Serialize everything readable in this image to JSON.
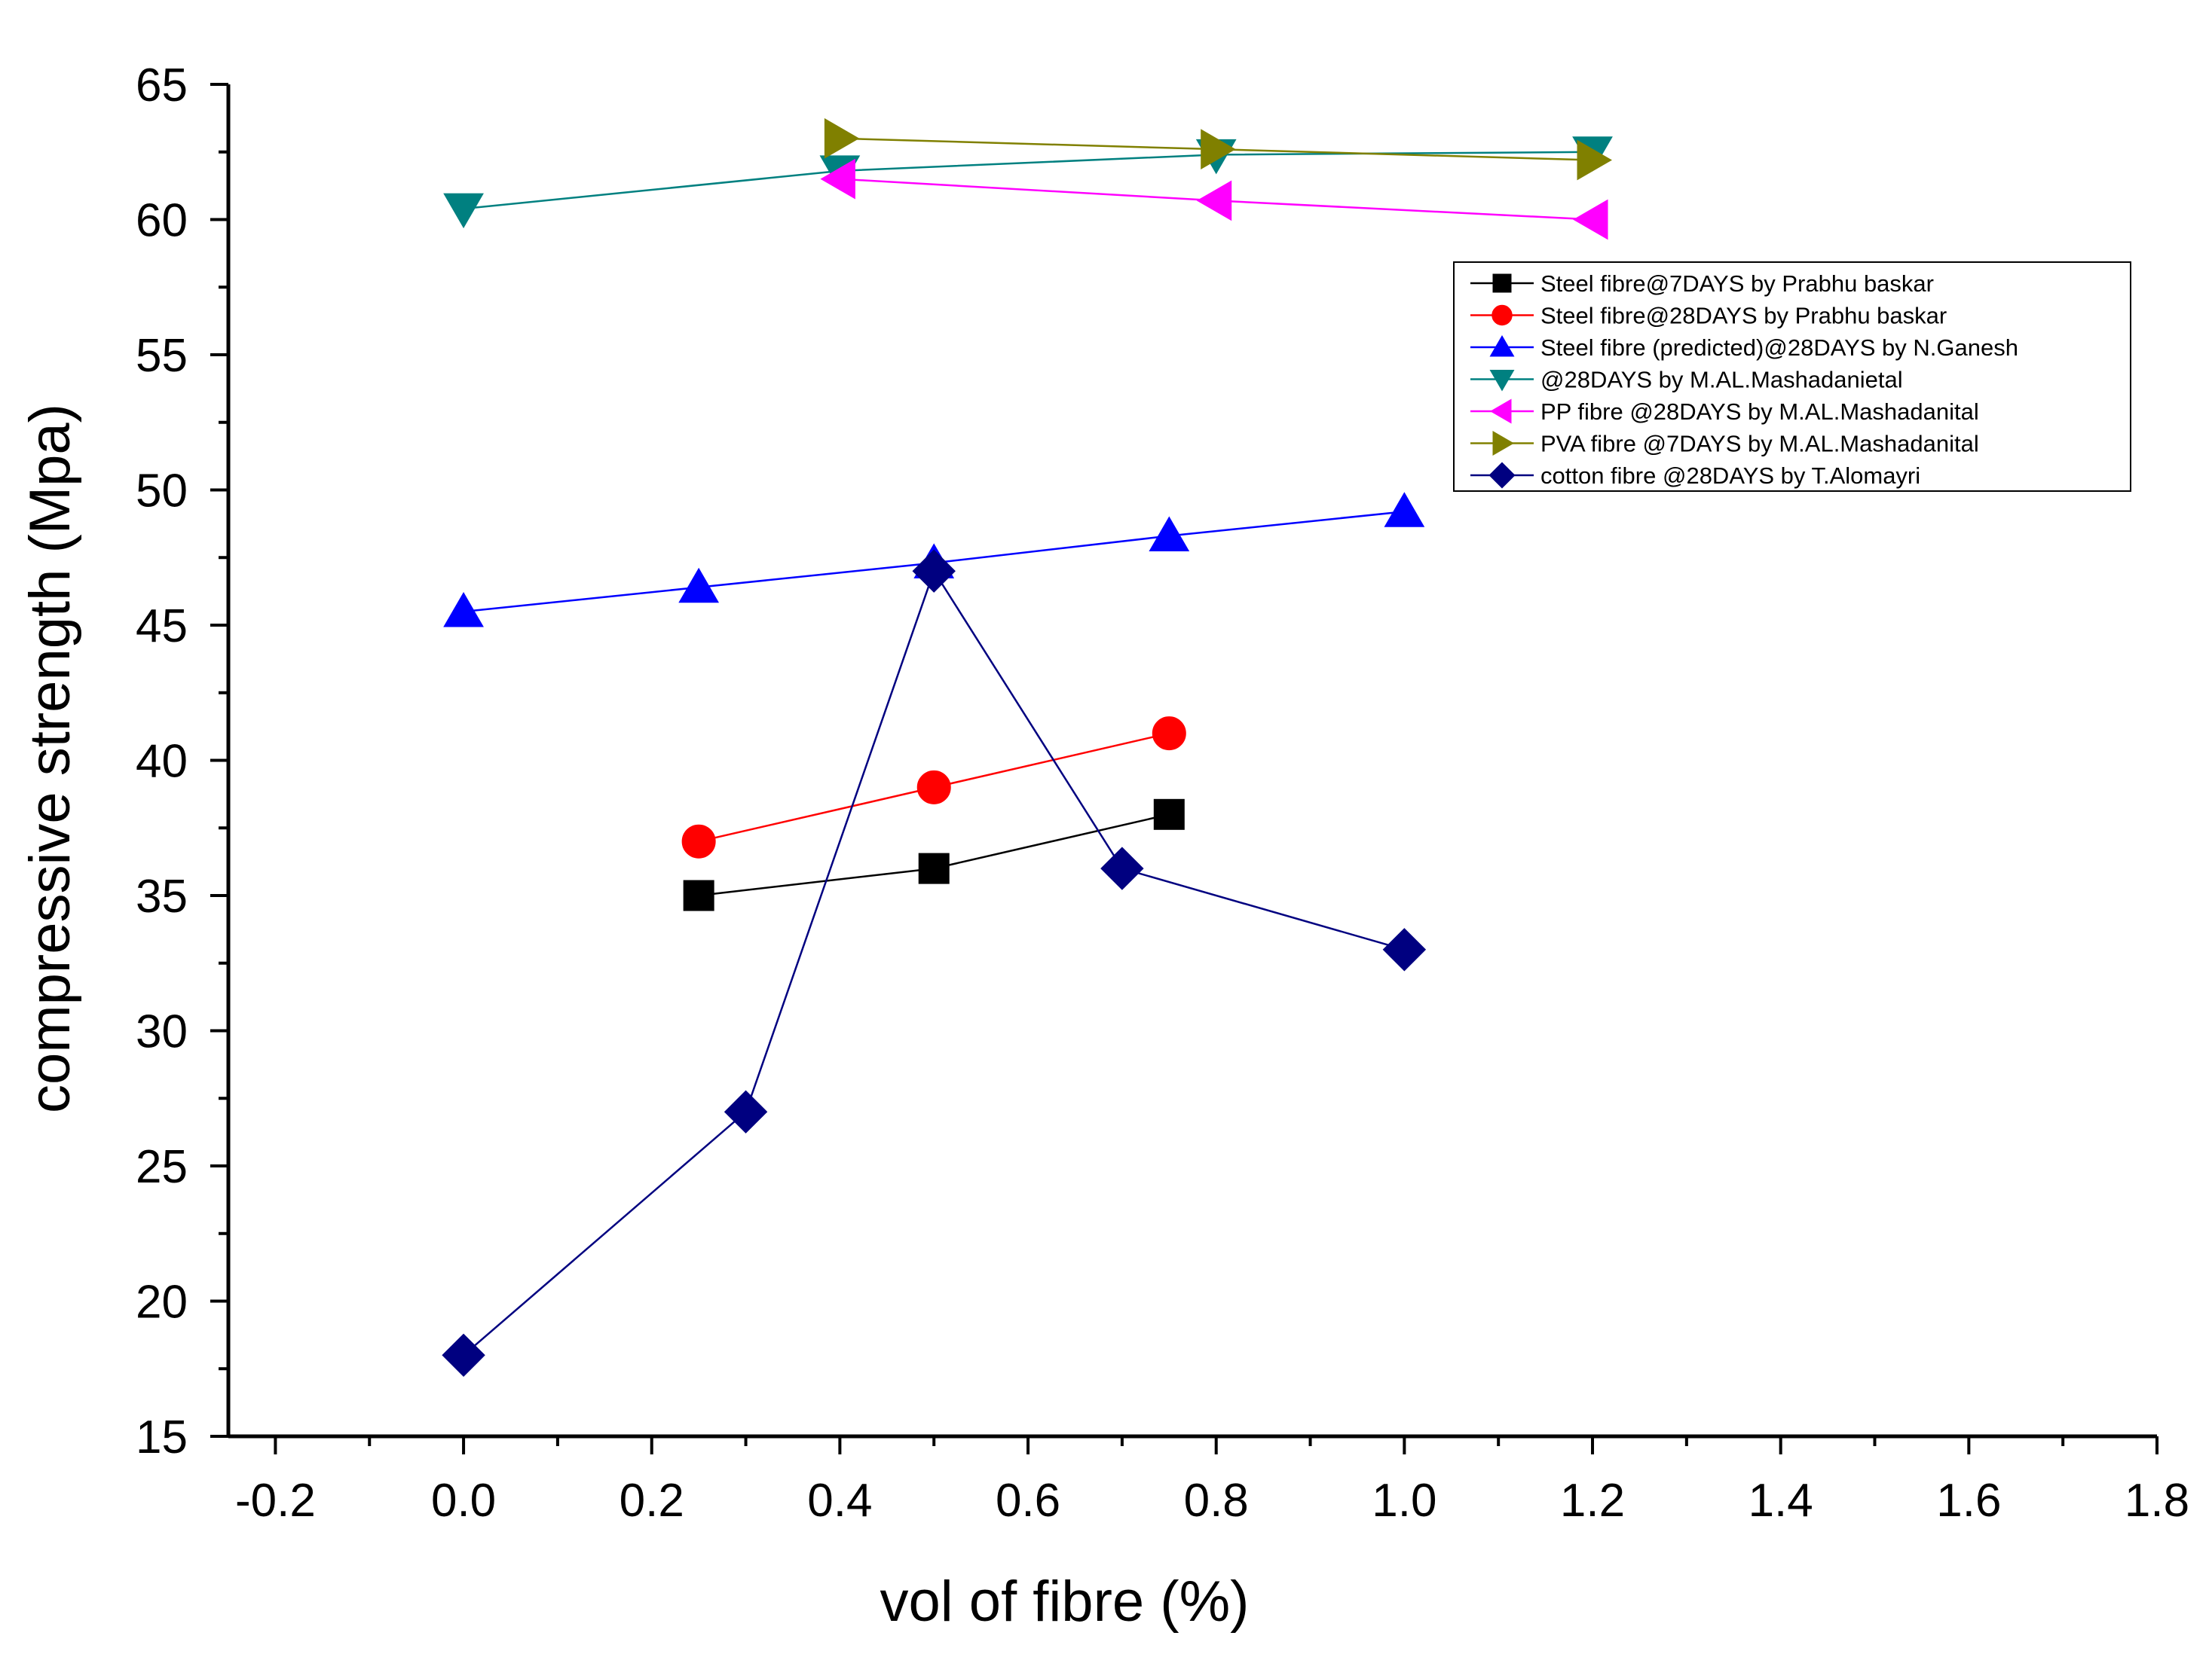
{
  "chart_data": {
    "type": "line",
    "title": "",
    "xlabel": "vol of fibre (%)",
    "ylabel": "compressive strength (Mpa)",
    "xlim": [
      -0.25,
      1.8
    ],
    "ylim": [
      15,
      65
    ],
    "x_ticks": [
      -0.2,
      0.0,
      0.2,
      0.4,
      0.6,
      0.8,
      1.0,
      1.2,
      1.4,
      1.6,
      1.8
    ],
    "x_tick_labels": [
      "-0.2",
      "0.0",
      "0.2",
      "0.4",
      "0.6",
      "0.8",
      "1.0",
      "1.2",
      "1.4",
      "1.6",
      "1.8"
    ],
    "y_ticks": [
      15,
      20,
      25,
      30,
      35,
      40,
      45,
      50,
      55,
      60,
      65
    ],
    "y_tick_labels": [
      "15",
      "20",
      "25",
      "30",
      "35",
      "40",
      "45",
      "50",
      "55",
      "60",
      "65"
    ],
    "grid": false,
    "legend_position": "top-right",
    "series": [
      {
        "name": "Steel fibre@7DAYS by Prabhu baskar",
        "color": "#000000",
        "marker": "square",
        "x": [
          0.25,
          0.5,
          0.75
        ],
        "y": [
          35,
          36,
          38
        ]
      },
      {
        "name": "Steel fibre@28DAYS by Prabhu baskar",
        "color": "#ff0000",
        "marker": "circle",
        "x": [
          0.25,
          0.5,
          0.75
        ],
        "y": [
          37,
          39,
          41
        ]
      },
      {
        "name": "Steel fibre (predicted)@28DAYS by N.Ganesh",
        "color": "#0000ff",
        "marker": "triangle-up",
        "x": [
          0.0,
          0.25,
          0.5,
          0.75,
          1.0
        ],
        "y": [
          45.5,
          46.4,
          47.3,
          48.3,
          49.2
        ]
      },
      {
        "name": "@28DAYS by M.AL.Mashadanietal",
        "color": "#008080",
        "marker": "triangle-down",
        "x": [
          0.0,
          0.4,
          0.8,
          1.2
        ],
        "y": [
          60.4,
          61.8,
          62.4,
          62.5
        ]
      },
      {
        "name": "PP fibre @28DAYS by M.AL.Mashadanital",
        "color": "#ff00ff",
        "marker": "triangle-left",
        "x": [
          0.4,
          0.8,
          1.2
        ],
        "y": [
          61.5,
          60.7,
          60.0
        ]
      },
      {
        "name": "PVA fibre @7DAYS by M.AL.Mashadanital",
        "color": "#808000",
        "marker": "triangle-right",
        "x": [
          0.4,
          0.8,
          1.2
        ],
        "y": [
          63.0,
          62.6,
          62.2
        ]
      },
      {
        "name": "cotton fibre @28DAYS by T.Alomayri",
        "color": "#000080",
        "marker": "diamond",
        "x": [
          0.0,
          0.3,
          0.5,
          0.7,
          1.0
        ],
        "y": [
          18,
          27,
          47,
          36,
          33
        ]
      }
    ]
  }
}
